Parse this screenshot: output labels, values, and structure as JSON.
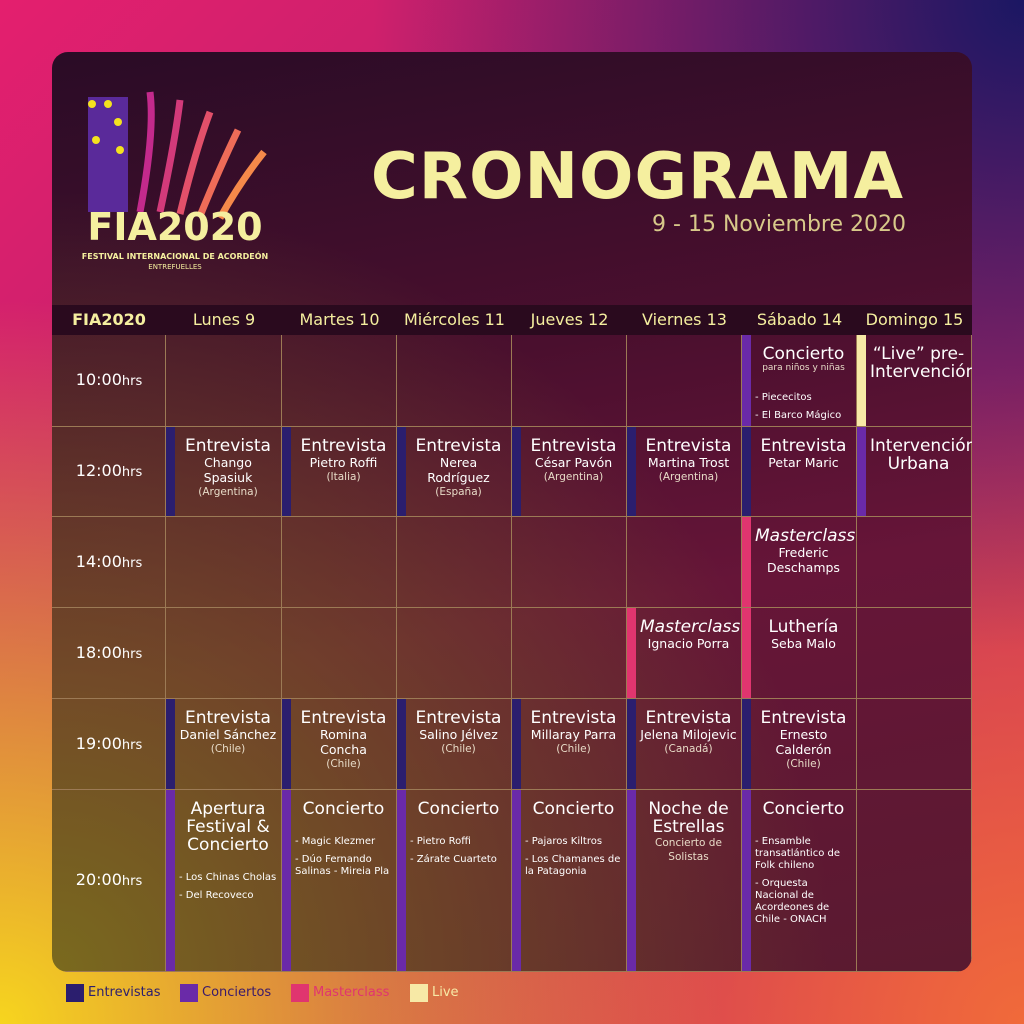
{
  "logo": {
    "name": "FIA2020",
    "line1": "FESTIVAL INTERNACIONAL DE ACORDEÓN",
    "line2": "ENTREFUELLES"
  },
  "title": "CRONOGRAMA",
  "subtitle": "9 - 15 Noviembre 2020",
  "header": {
    "corner": "FIA2020",
    "days": [
      "Lunes 9",
      "Martes 10",
      "Miércoles 11",
      "Jueves 12",
      "Viernes 13",
      "Sábado 14",
      "Domingo 15"
    ]
  },
  "rows": [
    {
      "time": "10:00",
      "unit": "hrs",
      "cells": [
        null,
        null,
        null,
        null,
        null,
        {
          "color": "#6a2aa8",
          "title": "Concierto",
          "notes": [
            "para niños y niñas"
          ],
          "items": [
            "- Piececitos",
            "- El Barco Mágico"
          ]
        },
        {
          "color": "#f7e9a6",
          "title": "“Live” pre-Intervención"
        }
      ]
    },
    {
      "time": "12:00",
      "unit": "hrs",
      "cells": [
        {
          "color": "#2b1e6e",
          "title": "Entrevista",
          "lines": [
            "Chango Spasiuk"
          ],
          "notes": [
            "(Argentina)"
          ]
        },
        {
          "color": "#2b1e6e",
          "title": "Entrevista",
          "lines": [
            "Pietro Roffi"
          ],
          "notes": [
            "(Italia)"
          ]
        },
        {
          "color": "#2b1e6e",
          "title": "Entrevista",
          "lines": [
            "Nerea Rodríguez"
          ],
          "notes": [
            "(España)"
          ]
        },
        {
          "color": "#2b1e6e",
          "title": "Entrevista",
          "lines": [
            "César Pavón"
          ],
          "notes": [
            "(Argentina)"
          ]
        },
        {
          "color": "#2b1e6e",
          "title": "Entrevista",
          "lines": [
            "Martina Trost"
          ],
          "notes": [
            "(Argentina)"
          ]
        },
        {
          "color": "#2b1e6e",
          "title": "Entrevista",
          "lines": [
            "Petar Maric"
          ]
        },
        {
          "color": "#6a2aa8",
          "title": "Intervención Urbana"
        }
      ]
    },
    {
      "time": "14:00",
      "unit": "hrs",
      "cells": [
        null,
        null,
        null,
        null,
        null,
        {
          "color": "#e0356f",
          "italic": true,
          "title": "Masterclass",
          "lines": [
            "Frederic Deschamps"
          ]
        },
        null
      ]
    },
    {
      "time": "18:00",
      "unit": "hrs",
      "cells": [
        null,
        null,
        null,
        null,
        {
          "color": "#e0356f",
          "italic": true,
          "title": "Masterclass",
          "lines": [
            "Ignacio Porra"
          ]
        },
        {
          "color": "#e0356f",
          "title": "Luthería",
          "lines": [
            "Seba Malo"
          ]
        },
        null
      ]
    },
    {
      "time": "19:00",
      "unit": "hrs",
      "cells": [
        {
          "color": "#2b1e6e",
          "title": "Entrevista",
          "lines": [
            "Daniel Sánchez"
          ],
          "notes": [
            "(Chile)"
          ]
        },
        {
          "color": "#2b1e6e",
          "title": "Entrevista",
          "lines": [
            "Romina Concha"
          ],
          "notes": [
            "(Chile)"
          ]
        },
        {
          "color": "#2b1e6e",
          "title": "Entrevista",
          "lines": [
            "Salino Jélvez"
          ],
          "notes": [
            "(Chile)"
          ]
        },
        {
          "color": "#2b1e6e",
          "title": "Entrevista",
          "lines": [
            "Millaray Parra"
          ],
          "notes": [
            "(Chile)"
          ]
        },
        {
          "color": "#2b1e6e",
          "title": "Entrevista",
          "lines": [
            "Jelena Milojevic"
          ],
          "notes": [
            "(Canadá)"
          ]
        },
        {
          "color": "#2b1e6e",
          "title": "Entrevista",
          "lines": [
            "Ernesto Calderón"
          ],
          "notes": [
            "(Chile)"
          ]
        },
        null
      ]
    },
    {
      "time": "20:00",
      "unit": "hrs",
      "cells": [
        {
          "color": "#6a2aa8",
          "title": "Apertura Festival & Concierto",
          "items": [
            "- Los Chinas Cholas",
            "- Del Recoveco"
          ]
        },
        {
          "color": "#6a2aa8",
          "title": "Concierto",
          "items": [
            "- Magic Klezmer",
            "- Dúo Fernando Salinas - Mireia Pla"
          ]
        },
        {
          "color": "#6a2aa8",
          "title": "Concierto",
          "items": [
            "- Pietro Roffi",
            "- Zárate Cuarteto"
          ]
        },
        {
          "color": "#6a2aa8",
          "title": "Concierto",
          "items": [
            "- Pajaros Kiltros",
            "- Los Chamanes de la Patagonia"
          ]
        },
        {
          "color": "#6a2aa8",
          "title": "Noche de Estrellas",
          "notes": [
            "Concierto de Solistas"
          ]
        },
        {
          "color": "#6a2aa8",
          "title": "Concierto",
          "items": [
            "- Ensamble transatlántico de Folk chileno",
            "- Orquesta Nacional de Acordeones de Chile - ONACH"
          ]
        },
        null
      ]
    }
  ],
  "legend": [
    {
      "label": "Entrevistas",
      "color": "#2b1e6e"
    },
    {
      "label": "Conciertos",
      "color": "#6a2aa8"
    },
    {
      "label": "Masterclass",
      "color": "#e0356f"
    },
    {
      "label": "Live",
      "color": "#f7e9a6"
    }
  ]
}
